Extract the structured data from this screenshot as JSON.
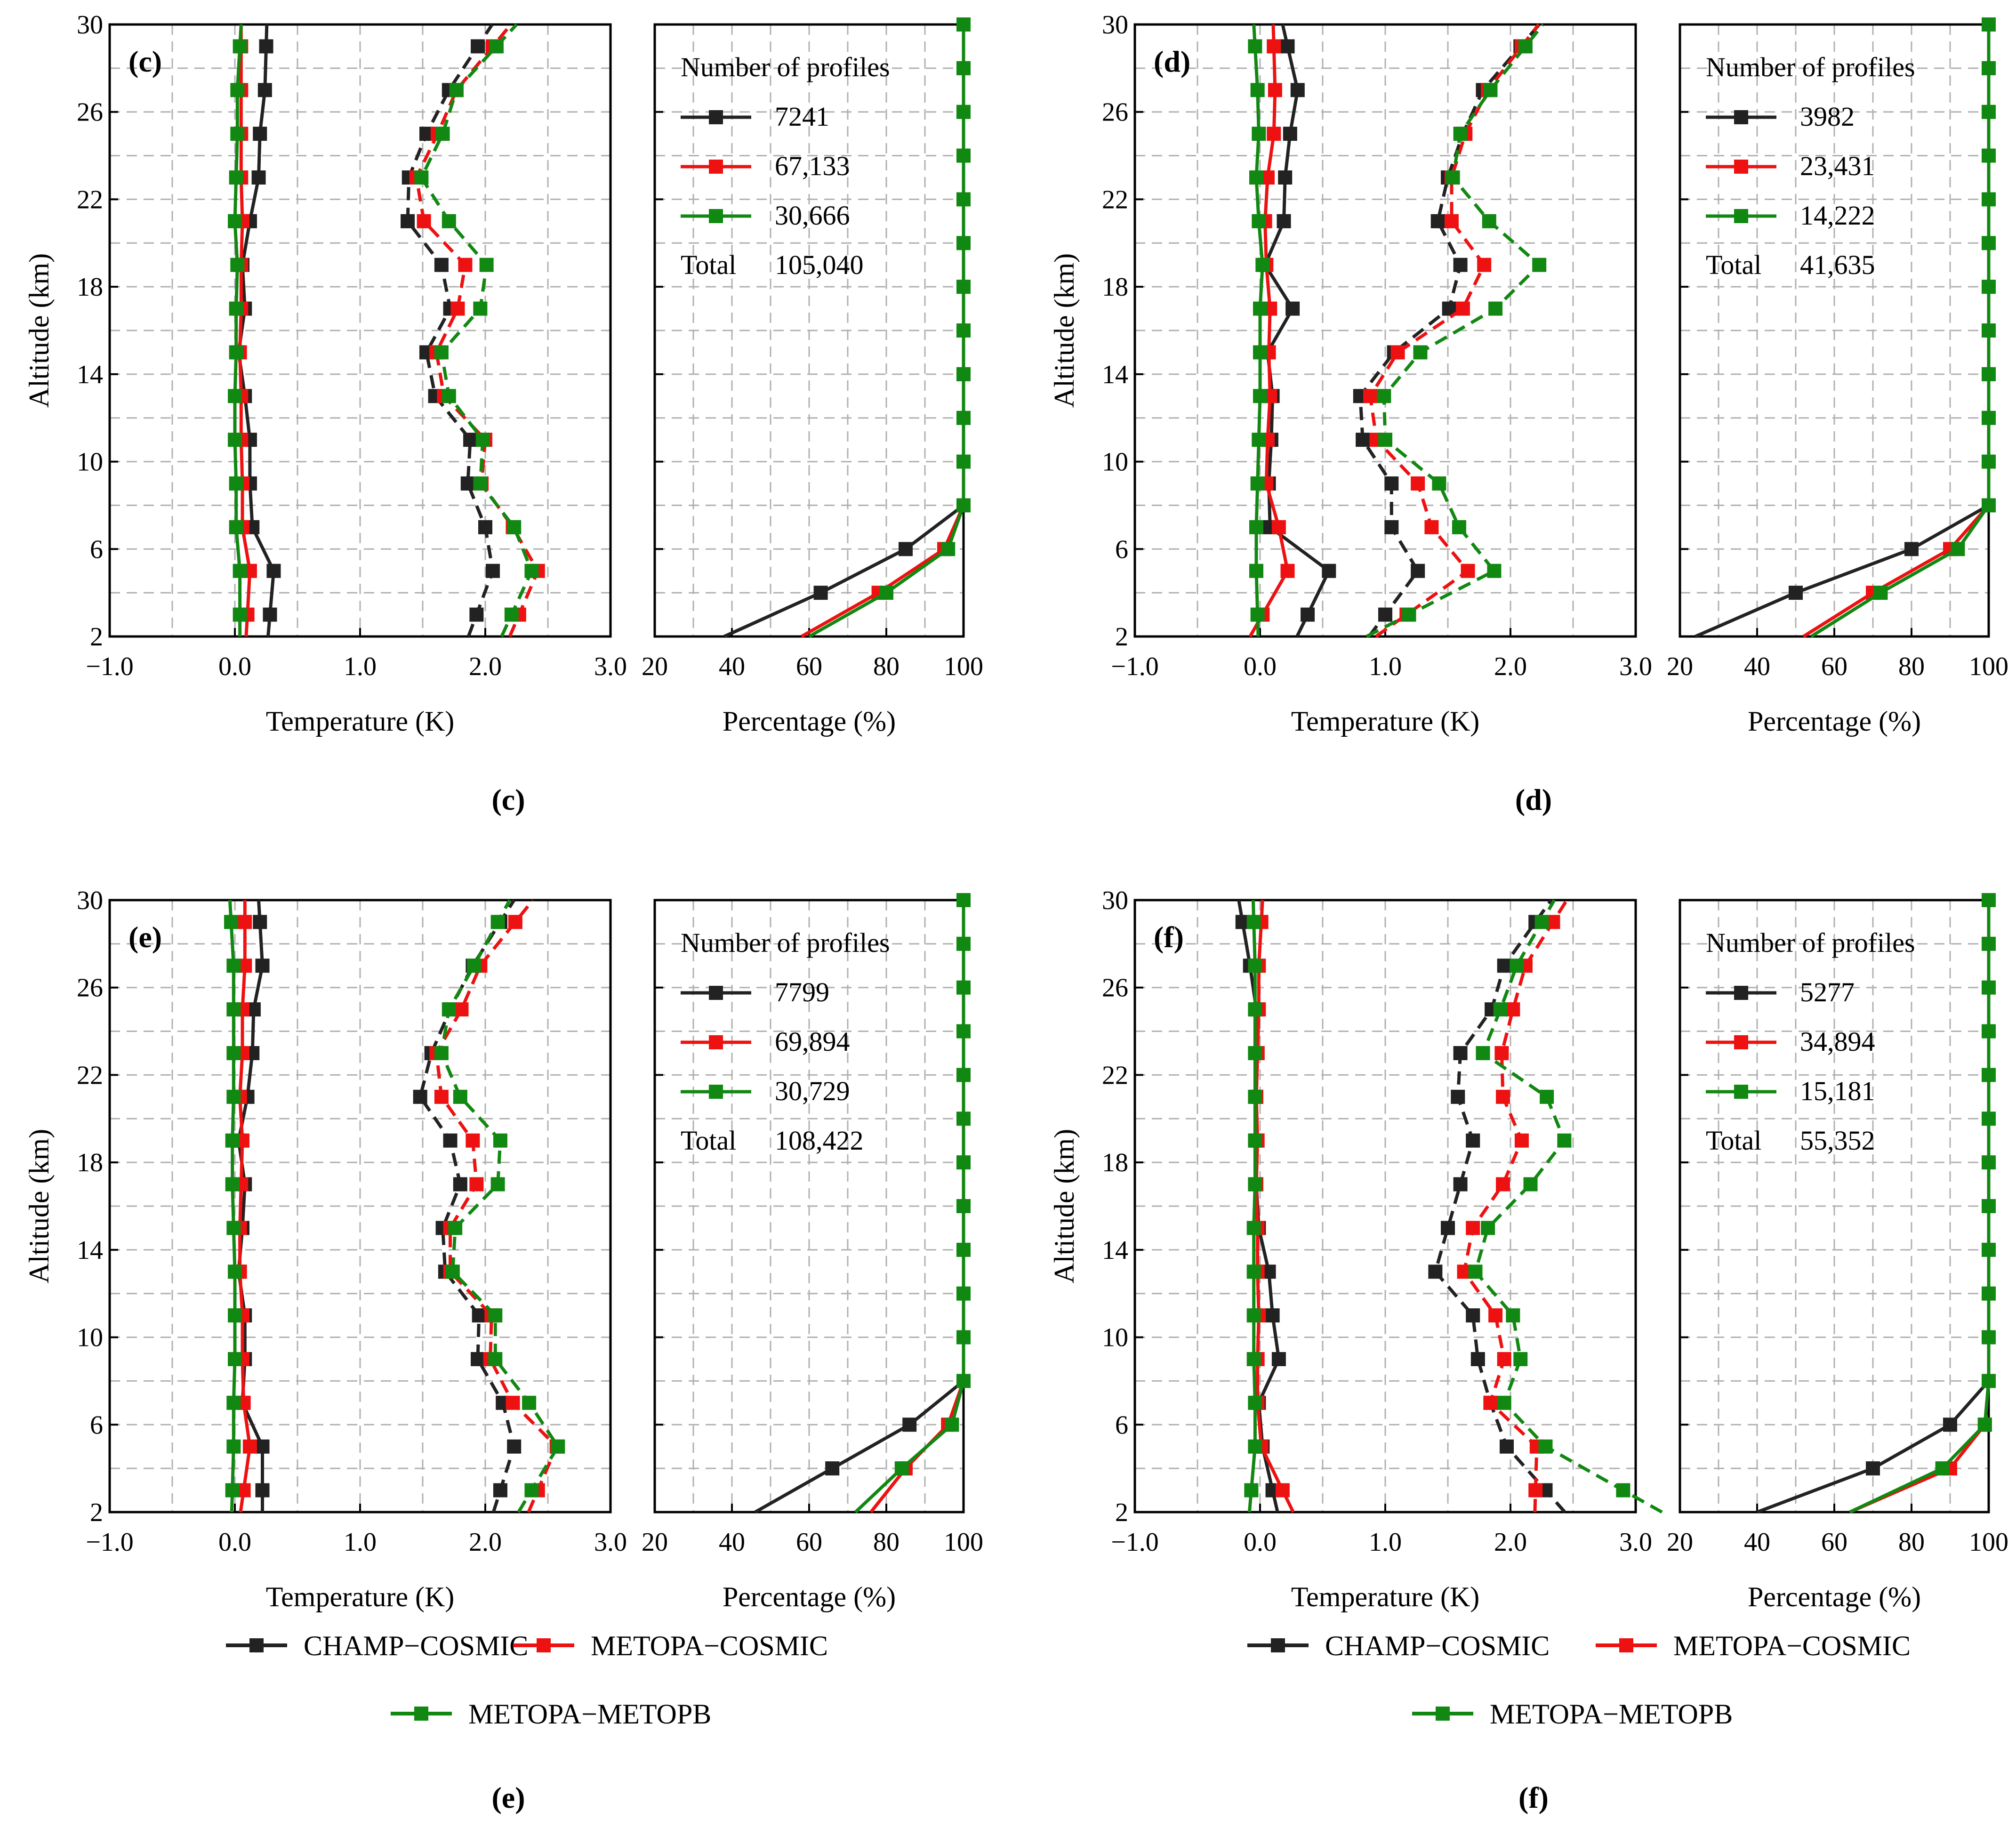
{
  "colors": {
    "champ": "#222222",
    "metopa_cosmic": "#ee1111",
    "metopa_metopb": "#118811",
    "grid": "#b0b0b0"
  },
  "legend_names": [
    "CHAMP−COSMIC",
    "METOPA−COSMIC",
    "METOPA−METOPB"
  ],
  "chart_data": [
    {
      "panel": "c",
      "caption": "(c)",
      "panel_label": "(c)",
      "type": "line",
      "temperature_axis": {
        "xlabel": "Temperature (K)",
        "xlim": [
          -1.0,
          3.0
        ],
        "xticks": [
          "−1.0",
          "0.0",
          "1.0",
          "2.0",
          "3.0"
        ]
      },
      "percentage_axis": {
        "xlabel": "Percentage (%)",
        "xlim": [
          20,
          100
        ],
        "xticks": [
          "20",
          "40",
          "60",
          "80",
          "100"
        ]
      },
      "ylabel": "Altitude (km)",
      "ylim": [
        2,
        30
      ],
      "yticks": [
        "2",
        "6",
        "10",
        "14",
        "18",
        "22",
        "26",
        "30"
      ],
      "legend_title": "Number of profiles",
      "counts": [
        "7241",
        "67,133",
        "30,666"
      ],
      "total_label": "Total",
      "total": "105,040",
      "altitude": [
        3,
        5,
        7,
        9,
        11,
        13,
        15,
        17,
        19,
        21,
        23,
        25,
        27,
        29
      ],
      "mean": {
        "champ": [
          0.28,
          0.31,
          0.14,
          0.12,
          0.12,
          0.08,
          0.03,
          0.08,
          0.06,
          0.12,
          0.19,
          0.2,
          0.24,
          0.25
        ],
        "metopa_cosmic": [
          0.1,
          0.12,
          0.06,
          0.06,
          0.05,
          0.05,
          0.04,
          0.05,
          0.05,
          0.06,
          0.05,
          0.05,
          0.05,
          0.05
        ],
        "metopa_metopb": [
          0.04,
          0.04,
          0.01,
          0.01,
          0.0,
          0.0,
          0.01,
          0.01,
          0.02,
          0.0,
          0.01,
          0.02,
          0.02,
          0.04
        ]
      },
      "std": {
        "champ": [
          1.93,
          2.06,
          2.0,
          1.86,
          1.88,
          1.6,
          1.53,
          1.72,
          1.65,
          1.38,
          1.39,
          1.53,
          1.71,
          1.94
        ],
        "metopa_cosmic": [
          2.27,
          2.42,
          2.22,
          1.97,
          2.0,
          1.67,
          1.61,
          1.78,
          1.84,
          1.51,
          1.45,
          1.62,
          1.77,
          2.06
        ],
        "metopa_metopb": [
          2.21,
          2.37,
          2.23,
          1.96,
          1.98,
          1.71,
          1.65,
          1.96,
          2.01,
          1.71,
          1.49,
          1.66,
          1.77,
          2.09
        ]
      },
      "percentage": {
        "altitude": [
          2,
          4,
          6,
          8,
          10,
          30
        ],
        "champ": [
          38,
          63,
          85,
          100,
          100,
          100
        ],
        "metopa_cosmic": [
          58,
          78,
          95,
          100,
          100,
          100
        ],
        "metopa_metopb": [
          60,
          80,
          96,
          100,
          100,
          100
        ]
      }
    },
    {
      "panel": "d",
      "caption": "(d)",
      "panel_label": "(d)",
      "type": "line",
      "temperature_axis": {
        "xlabel": "Temperature (K)",
        "xlim": [
          -1.0,
          3.0
        ],
        "xticks": [
          "−1.0",
          "0.0",
          "1.0",
          "2.0",
          "3.0"
        ]
      },
      "percentage_axis": {
        "xlabel": "Percentage (%)",
        "xlim": [
          20,
          100
        ],
        "xticks": [
          "20",
          "40",
          "60",
          "80",
          "100"
        ]
      },
      "ylabel": "Altitude (km)",
      "ylim": [
        2,
        30
      ],
      "yticks": [
        "2",
        "6",
        "10",
        "14",
        "18",
        "22",
        "26",
        "30"
      ],
      "legend_title": "Number of profiles",
      "counts": [
        "3982",
        "23,431",
        "14,222"
      ],
      "total_label": "Total",
      "total": "41,635",
      "altitude": [
        3,
        5,
        7,
        9,
        11,
        13,
        15,
        17,
        19,
        21,
        23,
        25,
        27,
        29
      ],
      "mean": {
        "champ": [
          0.38,
          0.55,
          0.08,
          0.07,
          0.09,
          0.1,
          0.06,
          0.26,
          0.04,
          0.19,
          0.2,
          0.24,
          0.3,
          0.22
        ],
        "metopa_cosmic": [
          0.02,
          0.22,
          0.15,
          0.05,
          0.06,
          0.08,
          0.07,
          0.08,
          0.05,
          0.04,
          0.06,
          0.11,
          0.12,
          0.11
        ],
        "metopa_metopb": [
          -0.02,
          -0.03,
          -0.03,
          -0.02,
          -0.01,
          0.0,
          0.0,
          0.0,
          0.02,
          -0.01,
          -0.03,
          -0.01,
          -0.02,
          -0.04
        ]
      },
      "std": {
        "champ": [
          1.0,
          1.26,
          1.05,
          1.05,
          0.82,
          0.8,
          1.07,
          1.51,
          1.6,
          1.42,
          1.5,
          1.62,
          1.78,
          2.08
        ],
        "metopa_cosmic": [
          1.17,
          1.66,
          1.37,
          1.26,
          0.93,
          0.88,
          1.1,
          1.62,
          1.79,
          1.53,
          1.53,
          1.64,
          1.82,
          2.09
        ],
        "metopa_metopb": [
          1.19,
          1.87,
          1.59,
          1.43,
          1.0,
          0.99,
          1.28,
          1.88,
          2.23,
          1.83,
          1.54,
          1.6,
          1.84,
          2.12
        ]
      },
      "percentage": {
        "altitude": [
          2,
          4,
          6,
          8,
          10,
          30
        ],
        "champ": [
          24,
          50,
          80,
          100,
          100,
          100
        ],
        "metopa_cosmic": [
          52,
          70,
          90,
          100,
          100,
          100
        ],
        "metopa_metopb": [
          54,
          72,
          92,
          100,
          100,
          100
        ]
      }
    },
    {
      "panel": "e",
      "caption": "(e)",
      "panel_label": "(e)",
      "type": "line",
      "temperature_axis": {
        "xlabel": "Temperature (K)",
        "xlim": [
          -1.0,
          3.0
        ],
        "xticks": [
          "−1.0",
          "0.0",
          "1.0",
          "2.0",
          "3.0"
        ]
      },
      "percentage_axis": {
        "xlabel": "Percentage (%)",
        "xlim": [
          20,
          100
        ],
        "xticks": [
          "20",
          "40",
          "60",
          "80",
          "100"
        ]
      },
      "ylabel": "Altitude (km)",
      "ylim": [
        2,
        30
      ],
      "yticks": [
        "2",
        "6",
        "10",
        "14",
        "18",
        "22",
        "26",
        "30"
      ],
      "legend_title": "Number of profiles",
      "counts": [
        "7799",
        "69,894",
        "30,729"
      ],
      "total_label": "Total",
      "total": "108,422",
      "altitude": [
        3,
        5,
        7,
        9,
        11,
        13,
        15,
        17,
        19,
        21,
        23,
        25,
        27,
        29
      ],
      "mean": {
        "champ": [
          0.22,
          0.22,
          0.06,
          0.08,
          0.08,
          0.03,
          0.06,
          0.08,
          0.03,
          0.1,
          0.14,
          0.15,
          0.22,
          0.2
        ],
        "metopa_cosmic": [
          0.07,
          0.12,
          0.07,
          0.06,
          0.06,
          0.04,
          0.04,
          0.05,
          0.06,
          0.04,
          0.06,
          0.06,
          0.08,
          0.08
        ],
        "metopa_metopb": [
          -0.02,
          -0.01,
          -0.01,
          0.0,
          0.0,
          0.0,
          -0.01,
          -0.02,
          -0.02,
          -0.01,
          -0.01,
          -0.01,
          -0.01,
          -0.03
        ]
      },
      "std": {
        "champ": [
          2.12,
          2.23,
          2.14,
          1.94,
          1.95,
          1.68,
          1.66,
          1.8,
          1.72,
          1.48,
          1.57,
          1.72,
          1.9,
          2.12
        ],
        "metopa_cosmic": [
          2.42,
          2.57,
          2.22,
          2.04,
          2.05,
          1.72,
          1.72,
          1.93,
          1.9,
          1.65,
          1.61,
          1.81,
          1.96,
          2.24
        ],
        "metopa_metopb": [
          2.37,
          2.58,
          2.35,
          2.08,
          2.08,
          1.74,
          1.76,
          2.1,
          2.12,
          1.8,
          1.65,
          1.71,
          1.91,
          2.1
        ]
      },
      "percentage": {
        "altitude": [
          2,
          4,
          6,
          8,
          10,
          30
        ],
        "champ": [
          46,
          66,
          86,
          100,
          100,
          100
        ],
        "metopa_cosmic": [
          76,
          85,
          96,
          100,
          100,
          100
        ],
        "metopa_metopb": [
          72,
          84,
          97,
          100,
          100,
          100
        ]
      }
    },
    {
      "panel": "f",
      "caption": "(f)",
      "panel_label": "(f)",
      "type": "line",
      "temperature_axis": {
        "xlabel": "Temperature (K)",
        "xlim": [
          -1.0,
          3.0
        ],
        "xticks": [
          "−1.0",
          "0.0",
          "1.0",
          "2.0",
          "3.0"
        ]
      },
      "percentage_axis": {
        "xlabel": "Percentage (%)",
        "xlim": [
          20,
          100
        ],
        "xticks": [
          "20",
          "40",
          "60",
          "80",
          "100"
        ]
      },
      "ylabel": "Altitude (km)",
      "ylim": [
        2,
        30
      ],
      "yticks": [
        "2",
        "6",
        "10",
        "14",
        "18",
        "22",
        "26",
        "30"
      ],
      "legend_title": "Number of profiles",
      "counts": [
        "5277",
        "34,894",
        "15,181"
      ],
      "total_label": "Total",
      "total": "55,352",
      "altitude": [
        3,
        5,
        7,
        9,
        11,
        13,
        15,
        17,
        19,
        21,
        23,
        25,
        27,
        29
      ],
      "mean": {
        "champ": [
          0.1,
          0.02,
          -0.01,
          0.15,
          0.1,
          0.07,
          -0.01,
          -0.03,
          -0.03,
          -0.03,
          -0.02,
          -0.03,
          -0.08,
          -0.14
        ],
        "metopa_cosmic": [
          0.18,
          0.01,
          -0.02,
          -0.02,
          -0.01,
          -0.02,
          -0.02,
          -0.03,
          -0.02,
          -0.03,
          -0.02,
          -0.01,
          -0.01,
          0.01
        ],
        "metopa_metopb": [
          -0.07,
          -0.04,
          -0.04,
          -0.05,
          -0.05,
          -0.05,
          -0.05,
          -0.04,
          -0.04,
          -0.04,
          -0.04,
          -0.04,
          -0.04,
          -0.05
        ]
      },
      "std": {
        "champ": [
          2.28,
          1.97,
          1.84,
          1.74,
          1.7,
          1.4,
          1.5,
          1.6,
          1.7,
          1.58,
          1.6,
          1.85,
          1.95,
          2.2
        ],
        "metopa_cosmic": [
          2.2,
          2.21,
          1.84,
          1.95,
          1.88,
          1.63,
          1.7,
          1.94,
          2.09,
          1.94,
          1.93,
          2.02,
          2.12,
          2.34
        ],
        "metopa_metopb": [
          2.9,
          2.28,
          1.95,
          2.08,
          2.02,
          1.72,
          1.82,
          2.16,
          2.43,
          2.29,
          1.78,
          1.92,
          2.05,
          2.25
        ]
      },
      "percentage": {
        "altitude": [
          2,
          4,
          6,
          8,
          10,
          30
        ],
        "champ": [
          40,
          70,
          90,
          100,
          100,
          100
        ],
        "metopa_cosmic": [
          64,
          90,
          99,
          100,
          100,
          100
        ],
        "metopa_metopb": [
          64,
          88,
          99,
          100,
          100,
          100
        ]
      }
    }
  ]
}
